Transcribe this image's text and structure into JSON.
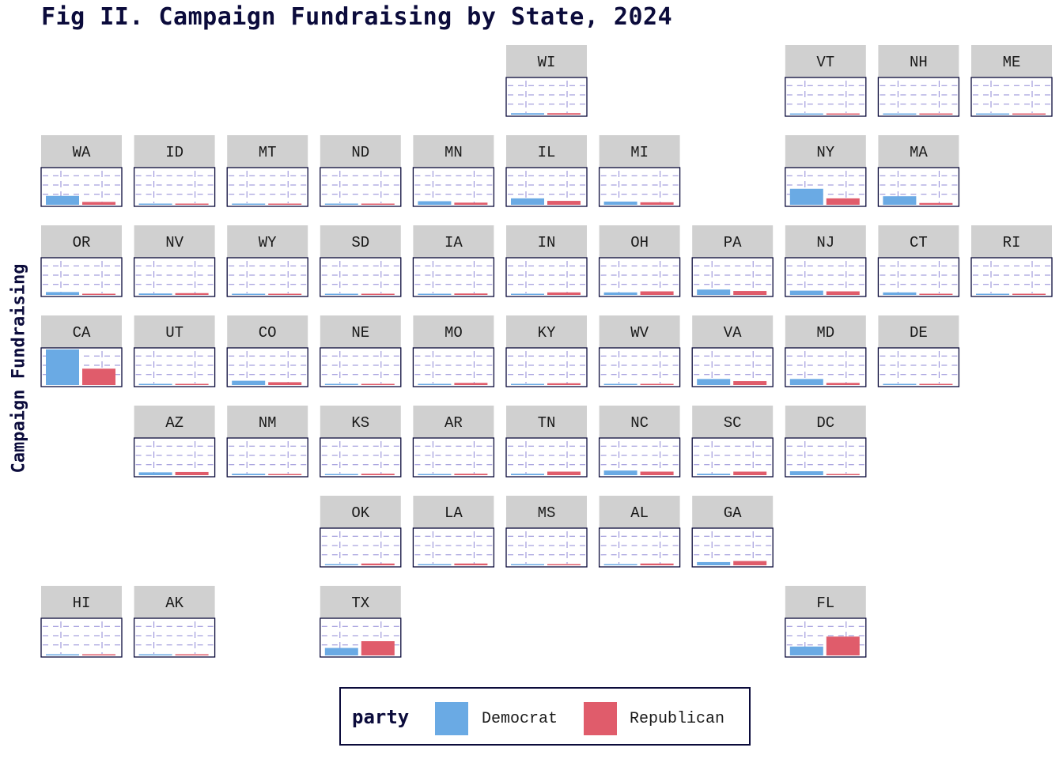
{
  "chart_data": {
    "type": "bar",
    "layout": "facet grid (state tile map)",
    "title": "Fig II. Campaign Fundraising by State, 2024",
    "ylabel": "Campaign Fundraising",
    "xlabel": "",
    "legend": {
      "title": "party",
      "position": "bottom",
      "entries": [
        {
          "name": "Democrat",
          "color": "#6aaae4"
        },
        {
          "name": "Republican",
          "color": "#e05c6b"
        }
      ]
    },
    "categories": [
      "Democrat",
      "Republican"
    ],
    "ylim": [
      0,
      1
    ],
    "grid": true,
    "panels": [
      {
        "state": "WI",
        "row": 0,
        "col": 5,
        "values": [
          0.04,
          0.04
        ]
      },
      {
        "state": "VT",
        "row": 0,
        "col": 8,
        "values": [
          0.01,
          0.01
        ]
      },
      {
        "state": "NH",
        "row": 0,
        "col": 9,
        "values": [
          0.02,
          0.02
        ]
      },
      {
        "state": "ME",
        "row": 0,
        "col": 10,
        "values": [
          0.01,
          0.01
        ]
      },
      {
        "state": "WA",
        "row": 1,
        "col": 0,
        "values": [
          0.25,
          0.08
        ]
      },
      {
        "state": "ID",
        "row": 1,
        "col": 1,
        "values": [
          0.01,
          0.03
        ]
      },
      {
        "state": "MT",
        "row": 1,
        "col": 2,
        "values": [
          0.01,
          0.02
        ]
      },
      {
        "state": "ND",
        "row": 1,
        "col": 3,
        "values": [
          0.005,
          0.01
        ]
      },
      {
        "state": "MN",
        "row": 1,
        "col": 4,
        "values": [
          0.1,
          0.06
        ]
      },
      {
        "state": "IL",
        "row": 1,
        "col": 5,
        "values": [
          0.18,
          0.11
        ]
      },
      {
        "state": "MI",
        "row": 1,
        "col": 6,
        "values": [
          0.09,
          0.07
        ]
      },
      {
        "state": "NY",
        "row": 1,
        "col": 8,
        "values": [
          0.45,
          0.18
        ]
      },
      {
        "state": "MA",
        "row": 1,
        "col": 9,
        "values": [
          0.24,
          0.05
        ]
      },
      {
        "state": "OR",
        "row": 2,
        "col": 0,
        "values": [
          0.08,
          0.03
        ]
      },
      {
        "state": "NV",
        "row": 2,
        "col": 1,
        "values": [
          0.04,
          0.05
        ]
      },
      {
        "state": "WY",
        "row": 2,
        "col": 2,
        "values": [
          0.005,
          0.02
        ]
      },
      {
        "state": "SD",
        "row": 2,
        "col": 3,
        "values": [
          0.005,
          0.01
        ]
      },
      {
        "state": "IA",
        "row": 2,
        "col": 4,
        "values": [
          0.02,
          0.04
        ]
      },
      {
        "state": "IN",
        "row": 2,
        "col": 5,
        "values": [
          0.03,
          0.07
        ]
      },
      {
        "state": "OH",
        "row": 2,
        "col": 6,
        "values": [
          0.07,
          0.1
        ]
      },
      {
        "state": "PA",
        "row": 2,
        "col": 7,
        "values": [
          0.15,
          0.11
        ]
      },
      {
        "state": "NJ",
        "row": 2,
        "col": 8,
        "values": [
          0.12,
          0.1
        ]
      },
      {
        "state": "CT",
        "row": 2,
        "col": 9,
        "values": [
          0.07,
          0.03
        ]
      },
      {
        "state": "RI",
        "row": 2,
        "col": 10,
        "values": [
          0.02,
          0.01
        ]
      },
      {
        "state": "CA",
        "row": 3,
        "col": 0,
        "values": [
          1.0,
          0.46
        ]
      },
      {
        "state": "UT",
        "row": 3,
        "col": 1,
        "values": [
          0.03,
          0.03
        ]
      },
      {
        "state": "CO",
        "row": 3,
        "col": 2,
        "values": [
          0.12,
          0.08
        ]
      },
      {
        "state": "NE",
        "row": 3,
        "col": 3,
        "values": [
          0.01,
          0.02
        ]
      },
      {
        "state": "MO",
        "row": 3,
        "col": 4,
        "values": [
          0.03,
          0.06
        ]
      },
      {
        "state": "KY",
        "row": 3,
        "col": 5,
        "values": [
          0.02,
          0.05
        ]
      },
      {
        "state": "WV",
        "row": 3,
        "col": 6,
        "values": [
          0.01,
          0.02
        ]
      },
      {
        "state": "VA",
        "row": 3,
        "col": 7,
        "values": [
          0.17,
          0.11
        ]
      },
      {
        "state": "MD",
        "row": 3,
        "col": 8,
        "values": [
          0.17,
          0.06
        ]
      },
      {
        "state": "DE",
        "row": 3,
        "col": 9,
        "values": [
          0.02,
          0.01
        ]
      },
      {
        "state": "AZ",
        "row": 4,
        "col": 1,
        "values": [
          0.08,
          0.09
        ]
      },
      {
        "state": "NM",
        "row": 4,
        "col": 2,
        "values": [
          0.04,
          0.03
        ]
      },
      {
        "state": "KS",
        "row": 4,
        "col": 3,
        "values": [
          0.02,
          0.04
        ]
      },
      {
        "state": "AR",
        "row": 4,
        "col": 4,
        "values": [
          0.02,
          0.04
        ]
      },
      {
        "state": "TN",
        "row": 4,
        "col": 5,
        "values": [
          0.04,
          0.1
        ]
      },
      {
        "state": "NC",
        "row": 4,
        "col": 6,
        "values": [
          0.13,
          0.1
        ]
      },
      {
        "state": "SC",
        "row": 4,
        "col": 7,
        "values": [
          0.04,
          0.1
        ]
      },
      {
        "state": "DC",
        "row": 4,
        "col": 8,
        "values": [
          0.11,
          0.03
        ]
      },
      {
        "state": "OK",
        "row": 5,
        "col": 3,
        "values": [
          0.02,
          0.05
        ]
      },
      {
        "state": "LA",
        "row": 5,
        "col": 4,
        "values": [
          0.03,
          0.05
        ]
      },
      {
        "state": "MS",
        "row": 5,
        "col": 5,
        "values": [
          0.01,
          0.03
        ]
      },
      {
        "state": "AL",
        "row": 5,
        "col": 6,
        "values": [
          0.02,
          0.05
        ]
      },
      {
        "state": "GA",
        "row": 5,
        "col": 7,
        "values": [
          0.09,
          0.12
        ]
      },
      {
        "state": "HI",
        "row": 6,
        "col": 0,
        "values": [
          0.03,
          0.01
        ]
      },
      {
        "state": "AK",
        "row": 6,
        "col": 1,
        "values": [
          0.01,
          0.02
        ]
      },
      {
        "state": "TX",
        "row": 6,
        "col": 3,
        "values": [
          0.21,
          0.4
        ]
      },
      {
        "state": "FL",
        "row": 6,
        "col": 8,
        "values": [
          0.25,
          0.53
        ]
      }
    ]
  }
}
